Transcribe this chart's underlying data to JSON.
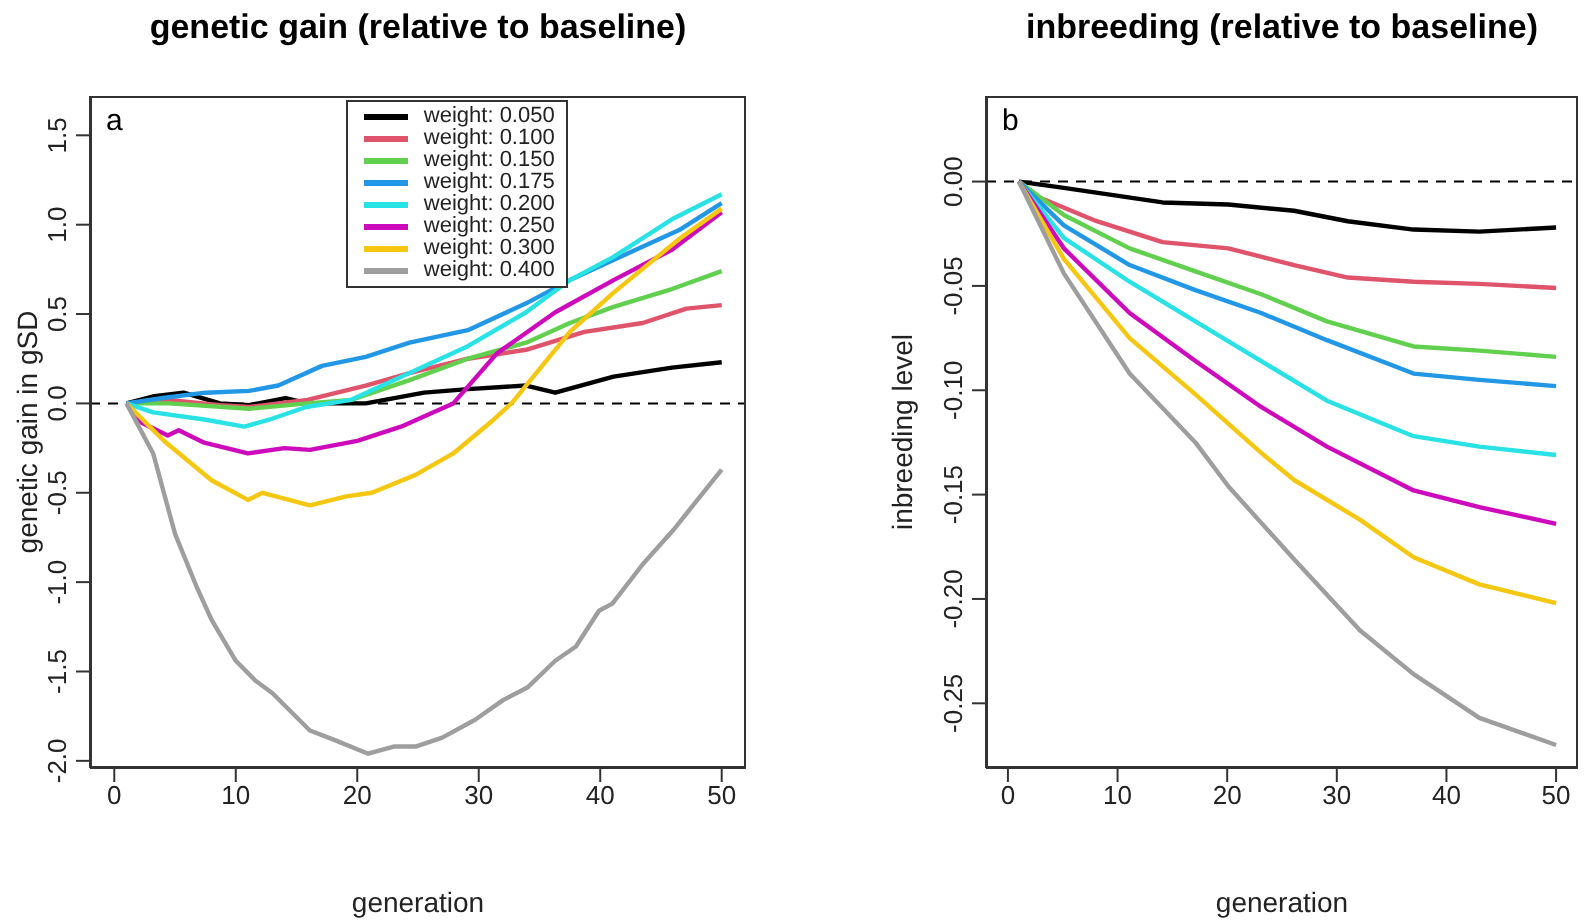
{
  "chart_data": [
    {
      "type": "line",
      "title": "genetic gain (relative to baseline)",
      "xlabel": "generation",
      "ylabel": "genetic gain in gSD",
      "annotations": [
        "a"
      ],
      "xlim": [
        -2,
        52
      ],
      "ylim": [
        -2.04,
        1.72
      ],
      "xticks": [
        0,
        10,
        20,
        30,
        40,
        50
      ],
      "yticks": [
        {
          "value": -2,
          "label": "-2.0"
        },
        {
          "value": -1.5,
          "label": "-1.5"
        },
        {
          "value": -1,
          "label": "-1.0"
        },
        {
          "value": -0.5,
          "label": "-0.5"
        },
        {
          "value": 0,
          "label": "0.0"
        },
        {
          "value": 0.5,
          "label": "0.5"
        },
        {
          "value": 1,
          "label": "1.0"
        },
        {
          "value": 1.5,
          "label": "1.5"
        }
      ],
      "grid": false,
      "legend": "top",
      "marker": "none",
      "line_style": "solid",
      "ref_lines": [
        {
          "axis": "y",
          "value": 0,
          "line_style": "dashed",
          "color": "#000000"
        }
      ],
      "series": [
        {
          "name": "weight: 0.050",
          "color": "#000000",
          "x": [
            1,
            3.3,
            5.7,
            8.7,
            11.1,
            14.1,
            15.9,
            20.7,
            25.5,
            29.1,
            33.9,
            36.3,
            41.1,
            45.9,
            50
          ],
          "values": [
            0,
            0.04,
            0.06,
            0,
            -0.01,
            0.03,
            0,
            0,
            0.06,
            0.08,
            0.1,
            0.06,
            0.15,
            0.2,
            0.23
          ]
        },
        {
          "name": "weight: 0.100",
          "color": "#df536b",
          "x": [
            1,
            4.5,
            8.7,
            11.1,
            15.9,
            20.7,
            24.3,
            29.1,
            33.9,
            38.7,
            43.5,
            47.1,
            50
          ],
          "values": [
            0,
            0.02,
            -0.01,
            -0.02,
            0.02,
            0.1,
            0.17,
            0.25,
            0.3,
            0.4,
            0.45,
            0.53,
            0.55
          ]
        },
        {
          "name": "weight: 0.150",
          "color": "#61d04f",
          "x": [
            1,
            4.5,
            11.1,
            15.9,
            19.5,
            24.3,
            29.1,
            33.9,
            37.5,
            41.1,
            45.9,
            50
          ],
          "values": [
            0,
            0,
            -0.03,
            0,
            0.02,
            0.13,
            0.25,
            0.34,
            0.45,
            0.54,
            0.64,
            0.74
          ]
        },
        {
          "name": "weight: 0.175",
          "color": "#2297e6",
          "x": [
            1,
            4,
            7.5,
            11.1,
            13.5,
            17.1,
            20.7,
            24.3,
            29.1,
            33.9,
            37.5,
            42.3,
            46.5,
            50
          ],
          "values": [
            0,
            0.03,
            0.06,
            0.07,
            0.1,
            0.21,
            0.26,
            0.34,
            0.41,
            0.56,
            0.69,
            0.84,
            0.97,
            1.12
          ]
        },
        {
          "name": "weight: 0.200",
          "color": "#28e2e5",
          "x": [
            1,
            3.2,
            7.4,
            10.7,
            12.8,
            15.8,
            19.5,
            24.3,
            29.1,
            33.9,
            37.5,
            41.1,
            45.9,
            50
          ],
          "values": [
            0,
            -0.05,
            -0.09,
            -0.13,
            -0.09,
            -0.02,
            0.02,
            0.17,
            0.32,
            0.51,
            0.69,
            0.82,
            1.03,
            1.17
          ]
        },
        {
          "name": "weight: 0.250",
          "color": "#cd0bbc",
          "x": [
            1,
            2.3,
            4.4,
            5.3,
            7.4,
            11,
            14,
            16.1,
            20,
            23.6,
            26.6,
            27.9,
            31.5,
            36.3,
            41.1,
            45.9,
            50
          ],
          "values": [
            0,
            -0.11,
            -0.18,
            -0.15,
            -0.22,
            -0.28,
            -0.25,
            -0.26,
            -0.21,
            -0.13,
            -0.04,
            0,
            0.28,
            0.51,
            0.69,
            0.86,
            1.07
          ]
        },
        {
          "name": "weight: 0.300",
          "color": "#f5c710",
          "x": [
            1,
            4.1,
            8,
            11,
            12.2,
            16.1,
            19.1,
            21.2,
            24.8,
            27.9,
            30.9,
            32.7,
            37.5,
            41.1,
            46.5,
            50
          ],
          "values": [
            0,
            -0.21,
            -0.43,
            -0.54,
            -0.5,
            -0.57,
            -0.52,
            -0.5,
            -0.4,
            -0.28,
            -0.11,
            0,
            0.4,
            0.62,
            0.92,
            1.09
          ]
        },
        {
          "name": "weight: 0.400",
          "color": "#9e9e9e",
          "x": [
            1,
            3.2,
            5,
            6.8,
            8,
            10,
            11.6,
            13,
            16.1,
            18,
            20.9,
            23,
            24.8,
            27,
            29.7,
            32,
            34,
            36.3,
            38,
            39.9,
            41,
            43.5,
            46,
            48,
            50
          ],
          "values": [
            0,
            -0.28,
            -0.73,
            -1.03,
            -1.21,
            -1.44,
            -1.55,
            -1.62,
            -1.83,
            -1.88,
            -1.96,
            -1.92,
            -1.92,
            -1.87,
            -1.77,
            -1.66,
            -1.59,
            -1.44,
            -1.36,
            -1.16,
            -1.12,
            -0.9,
            -0.71,
            -0.54,
            -0.37
          ]
        }
      ]
    },
    {
      "type": "line",
      "title": "inbreeding (relative to baseline)",
      "xlabel": "generation",
      "ylabel": "inbreeding level",
      "annotations": [
        "b"
      ],
      "xlim": [
        -2,
        52
      ],
      "ylim": [
        -0.281,
        0.041
      ],
      "xticks": [
        0,
        10,
        20,
        30,
        40,
        50
      ],
      "yticks": [
        {
          "value": -0.25,
          "label": "-0.25"
        },
        {
          "value": -0.2,
          "label": "-0.20"
        },
        {
          "value": -0.15,
          "label": "-0.15"
        },
        {
          "value": -0.1,
          "label": "-0.10"
        },
        {
          "value": -0.05,
          "label": "-0.05"
        },
        {
          "value": 0,
          "label": "0.00"
        }
      ],
      "grid": false,
      "legend": false,
      "marker": "none",
      "line_style": "solid",
      "ref_lines": [
        {
          "axis": "y",
          "value": 0,
          "line_style": "dashed",
          "color": "#000000"
        }
      ],
      "series": [
        {
          "color": "#000000",
          "x": [
            1,
            5.1,
            14.1,
            20.1,
            26.1,
            31,
            37,
            43,
            50
          ],
          "values": [
            0,
            -0.003,
            -0.01,
            -0.011,
            -0.014,
            -0.019,
            -0.023,
            -0.024,
            -0.022
          ]
        },
        {
          "color": "#df536b",
          "x": [
            1,
            2.1,
            8.1,
            14.1,
            20.1,
            26.1,
            31,
            37,
            43,
            50
          ],
          "values": [
            0,
            -0.006,
            -0.019,
            -0.029,
            -0.032,
            -0.04,
            -0.046,
            -0.048,
            -0.049,
            -0.051
          ]
        },
        {
          "color": "#61d04f",
          "x": [
            1,
            5.1,
            11.1,
            17.1,
            23.1,
            29.1,
            37,
            43,
            50
          ],
          "values": [
            0,
            -0.016,
            -0.032,
            -0.043,
            -0.054,
            -0.067,
            -0.079,
            -0.081,
            -0.084
          ]
        },
        {
          "color": "#2297e6",
          "x": [
            1,
            5.1,
            11.1,
            17.1,
            23.1,
            29.1,
            37,
            43,
            50
          ],
          "values": [
            0,
            -0.021,
            -0.04,
            -0.052,
            -0.063,
            -0.076,
            -0.092,
            -0.095,
            -0.098
          ]
        },
        {
          "color": "#28e2e5",
          "x": [
            1,
            5.1,
            11.1,
            17.1,
            23.1,
            29.1,
            37,
            43,
            50
          ],
          "values": [
            0,
            -0.027,
            -0.048,
            -0.067,
            -0.086,
            -0.105,
            -0.122,
            -0.127,
            -0.131
          ]
        },
        {
          "color": "#cd0bbc",
          "x": [
            1,
            5.1,
            11.1,
            17.1,
            23.1,
            29.1,
            37,
            43,
            50
          ],
          "values": [
            0,
            -0.032,
            -0.063,
            -0.086,
            -0.108,
            -0.127,
            -0.148,
            -0.156,
            -0.164
          ]
        },
        {
          "color": "#f5c710",
          "x": [
            1,
            5.1,
            11.1,
            17.1,
            23.1,
            26.1,
            32.1,
            37,
            43,
            50
          ],
          "values": [
            0,
            -0.037,
            -0.075,
            -0.102,
            -0.13,
            -0.143,
            -0.162,
            -0.18,
            -0.193,
            -0.202
          ]
        },
        {
          "color": "#9e9e9e",
          "x": [
            1,
            5.1,
            11.1,
            17.1,
            20.1,
            26.1,
            32.1,
            37,
            43,
            50
          ],
          "values": [
            0,
            -0.044,
            -0.092,
            -0.125,
            -0.146,
            -0.181,
            -0.215,
            -0.236,
            -0.257,
            -0.27
          ]
        }
      ]
    }
  ]
}
